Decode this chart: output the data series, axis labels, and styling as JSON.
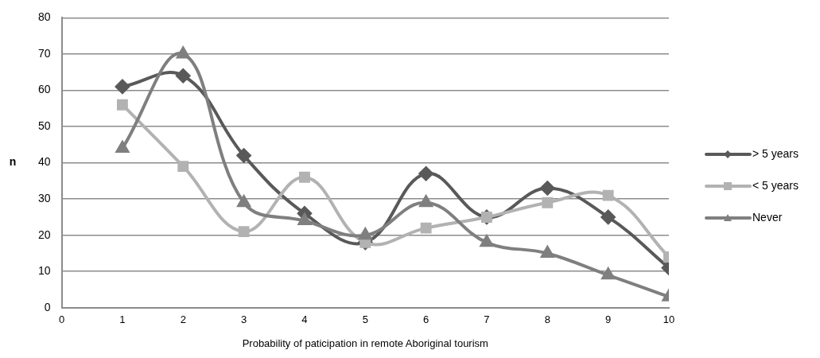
{
  "chart_data": {
    "type": "line",
    "xlabel": "Probability of paticipation in remote Aboriginal tourism",
    "ylabel": "n",
    "x": [
      1,
      2,
      3,
      4,
      5,
      6,
      7,
      8,
      9,
      10
    ],
    "xlim": [
      0,
      10
    ],
    "xticks": [
      0,
      1,
      2,
      3,
      4,
      5,
      6,
      7,
      8,
      9,
      10
    ],
    "ylim": [
      0,
      80
    ],
    "yticks": [
      0,
      10,
      20,
      30,
      40,
      50,
      60,
      70,
      80
    ],
    "grid": "y",
    "legend": "right",
    "series": [
      {
        "name": "> 5 years",
        "color": "#595959",
        "marker": "diamond",
        "values": [
          61,
          64,
          42,
          26,
          18,
          37,
          25,
          33,
          25,
          11
        ]
      },
      {
        "name": "< 5 years",
        "color": "#b2b2b2",
        "marker": "square",
        "values": [
          56,
          39,
          21,
          36,
          18,
          22,
          25,
          29,
          31,
          14
        ]
      },
      {
        "name": "Never",
        "color": "#7f7f7f",
        "marker": "triangle",
        "values": [
          44,
          70,
          29,
          24,
          20,
          29,
          18,
          15,
          9,
          3
        ]
      }
    ]
  }
}
